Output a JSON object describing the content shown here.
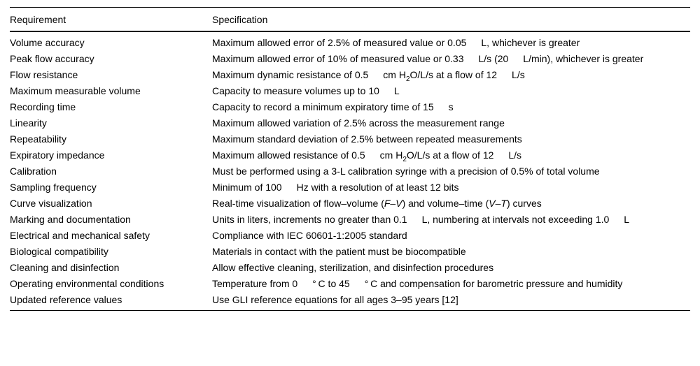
{
  "page": {
    "background_color": "#ffffff",
    "text_color": "#000000",
    "rule_color": "#000000"
  },
  "table": {
    "columns": [
      "Requirement",
      "Specification"
    ],
    "rows": [
      {
        "requirement": "Volume accuracy",
        "spec": [
          {
            "t": "Maximum allowed error of 2.5% of measured value or 0.05  L, whichever is greater"
          }
        ]
      },
      {
        "requirement": "Peak flow accuracy",
        "spec": [
          {
            "t": "Maximum allowed error of 10% of measured value or 0.33  L/s (20  L/min), whichever is greater"
          }
        ]
      },
      {
        "requirement": "Flow resistance",
        "spec": [
          {
            "t": "Maximum dynamic resistance of 0.5  cm H"
          },
          {
            "t": "2",
            "s": "sub"
          },
          {
            "t": "O/L/s at a flow of 12  L/s"
          }
        ]
      },
      {
        "requirement": "Maximum measurable volume",
        "spec": [
          {
            "t": "Capacity to measure volumes up to 10  L"
          }
        ]
      },
      {
        "requirement": "Recording time",
        "spec": [
          {
            "t": "Capacity to record a minimum expiratory time of 15  s"
          }
        ]
      },
      {
        "requirement": "Linearity",
        "spec": [
          {
            "t": "Maximum allowed variation of 2.5% across the measurement range"
          }
        ]
      },
      {
        "requirement": "Repeatability",
        "spec": [
          {
            "t": "Maximum standard deviation of 2.5% between repeated measurements"
          }
        ]
      },
      {
        "requirement": "Expiratory impedance",
        "spec": [
          {
            "t": "Maximum allowed resistance of 0.5  cm H"
          },
          {
            "t": "2",
            "s": "sub"
          },
          {
            "t": "O/L/s at a flow of 12  L/s"
          }
        ]
      },
      {
        "requirement": "Calibration",
        "spec": [
          {
            "t": "Must be performed using a 3-L calibration syringe with a precision of 0.5% of total volume"
          }
        ]
      },
      {
        "requirement": "Sampling frequency",
        "spec": [
          {
            "t": "Minimum of 100  Hz with a resolution of at least 12 bits"
          }
        ]
      },
      {
        "requirement": "Curve visualization",
        "spec": [
          {
            "t": "Real-time visualization of flow–volume ("
          },
          {
            "t": "F–V",
            "s": "i"
          },
          {
            "t": ") and volume–time ("
          },
          {
            "t": "V–T",
            "s": "i"
          },
          {
            "t": ") curves"
          }
        ]
      },
      {
        "requirement": "Marking and documentation",
        "spec": [
          {
            "t": "Units in liters, increments no greater than 0.1  L, numbering at intervals not exceeding 1.0  L"
          }
        ]
      },
      {
        "requirement": "Electrical and mechanical safety",
        "spec": [
          {
            "t": "Compliance with IEC 60601-1:2005 standard"
          }
        ]
      },
      {
        "requirement": "Biological compatibility",
        "spec": [
          {
            "t": "Materials in contact with the patient must be biocompatible"
          }
        ]
      },
      {
        "requirement": "Cleaning and disinfection",
        "spec": [
          {
            "t": "Allow effective cleaning, sterilization, and disinfection procedures"
          }
        ]
      },
      {
        "requirement": "Operating environmental conditions",
        "spec": [
          {
            "t": "Temperature from 0  ° C to 45  ° C and compensation for barometric pressure and humidity"
          }
        ]
      },
      {
        "requirement": "Updated reference values",
        "spec": [
          {
            "t": "Use GLI reference equations for all ages 3–95 years [12]"
          }
        ]
      }
    ]
  }
}
